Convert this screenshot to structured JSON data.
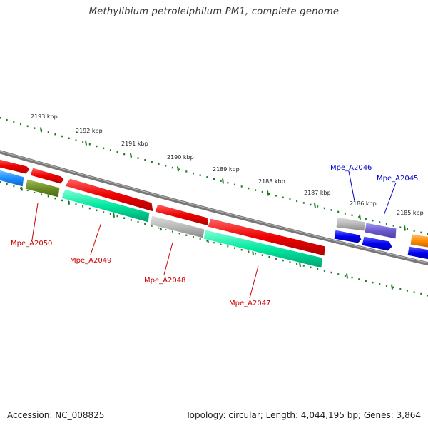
{
  "title": "Methylibium petroleiphilum PM1, complete genome",
  "footer": {
    "accession": "Accession: NC_008825",
    "summary": "Topology: circular; Length: 4,044,195 bp; Genes: 3,864"
  },
  "scale_labels": [
    "2193 kbp",
    "2192 kbp",
    "2191 kbp",
    "2190 kbp",
    "2189 kbp",
    "2188 kbp",
    "2187 kbp",
    "2186 kbp",
    "2185 kbp"
  ],
  "gene_labels": {
    "Mpe_A2050": "Mpe_A2050",
    "Mpe_A2049": "Mpe_A2049",
    "Mpe_A2048": "Mpe_A2048",
    "Mpe_A2047": "Mpe_A2047",
    "Mpe_A2046": "Mpe_A2046",
    "Mpe_A2045": "Mpe_A2045"
  },
  "colors": {
    "red": "#ee0000",
    "aqua": "#00e8a0",
    "gray": "#b0b0b0",
    "blue": "#0000ee",
    "purple": "#6a5acd",
    "olive": "#6b8e23",
    "sky": "#1e90ff",
    "orange": "#ff8c00",
    "tick": "#1e7a1e",
    "label_red": "#cc0000",
    "label_blue": "#0000cc"
  }
}
